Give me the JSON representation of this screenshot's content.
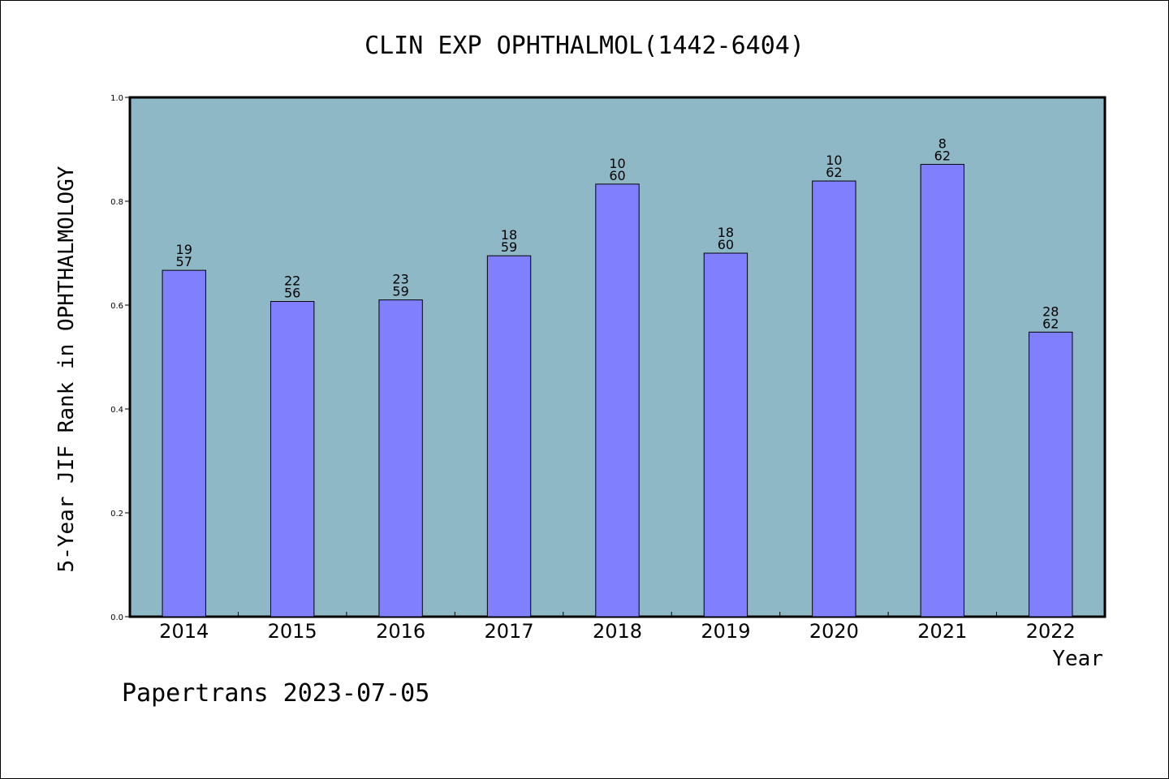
{
  "chart_data": {
    "type": "bar",
    "title": "CLIN EXP OPHTHALMOL(1442-6404)",
    "xlabel": "Year",
    "ylabel": "5-Year JIF Rank in OPHTHALMOLOGY",
    "categories": [
      "2014",
      "2015",
      "2016",
      "2017",
      "2018",
      "2019",
      "2020",
      "2021",
      "2022"
    ],
    "values": [
      0.667,
      0.607,
      0.61,
      0.695,
      0.833,
      0.7,
      0.839,
      0.871,
      0.548
    ],
    "bar_labels": [
      {
        "rank": "19",
        "total": "57"
      },
      {
        "rank": "22",
        "total": "56"
      },
      {
        "rank": "23",
        "total": "59"
      },
      {
        "rank": "18",
        "total": "59"
      },
      {
        "rank": "10",
        "total": "60"
      },
      {
        "rank": "18",
        "total": "60"
      },
      {
        "rank": "10",
        "total": "62"
      },
      {
        "rank": "8",
        "total": "62"
      },
      {
        "rank": "28",
        "total": "62"
      }
    ],
    "ylim": [
      0.0,
      1.0
    ],
    "yticks": [
      "0.0",
      "0.2",
      "0.4",
      "0.6",
      "0.8",
      "1.0"
    ],
    "grid": false,
    "colors": {
      "plot_background": "#8fb8c6",
      "bar_fill": "#8080ff",
      "bar_stroke": "#000000"
    }
  },
  "footer": "Papertrans 2023-07-05"
}
